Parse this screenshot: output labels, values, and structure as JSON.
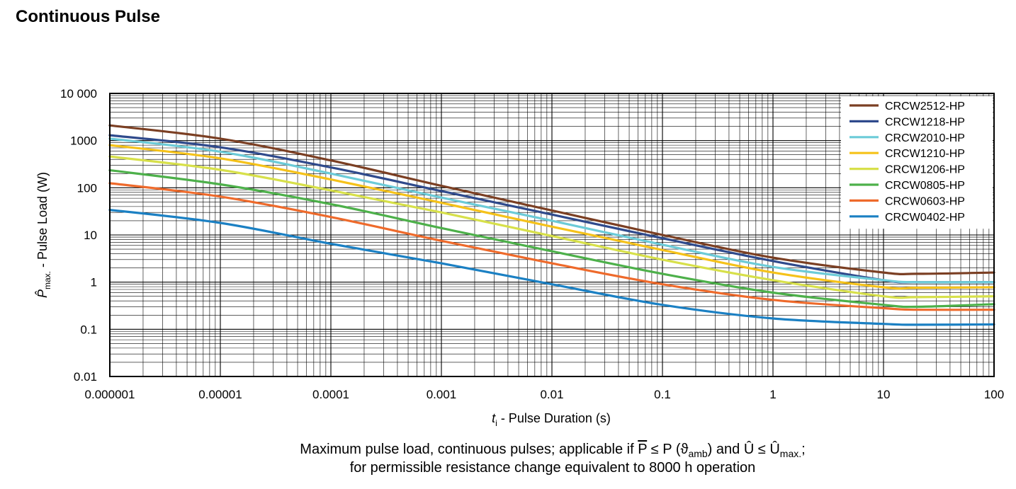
{
  "title": "Continuous Pulse",
  "caption": {
    "line1_prefix": "Maximum pulse load, continuous pulses; applicable if ",
    "pbar": "P",
    "leq": " ≤ P (",
    "theta": "ϑ",
    "amb": "amb",
    "and": ") and Û ≤ Û",
    "max": "max.",
    "end": ";",
    "line2": "for permissible resistance change equivalent to 8000 h operation"
  },
  "chart_data": {
    "type": "line",
    "xscale": "log",
    "yscale": "log",
    "xlim": [
      1e-06,
      100
    ],
    "ylim": [
      0.01,
      10000
    ],
    "xlabel_var": "t",
    "xlabel_sub": "i",
    "xlabel_text": " - Pulse Duration (s)",
    "ylabel_var": "P̂",
    "ylabel_sub": "max.",
    "ylabel_text": " - Pulse Load (W)",
    "xticks": [
      {
        "v": 1e-06,
        "label": "0.000001"
      },
      {
        "v": 1e-05,
        "label": "0.00001"
      },
      {
        "v": 0.0001,
        "label": "0.0001"
      },
      {
        "v": 0.001,
        "label": "0.001"
      },
      {
        "v": 0.01,
        "label": "0.01"
      },
      {
        "v": 0.1,
        "label": "0.1"
      },
      {
        "v": 1,
        "label": "1"
      },
      {
        "v": 10,
        "label": "10"
      },
      {
        "v": 100,
        "label": "100"
      }
    ],
    "yticks": [
      {
        "v": 10000,
        "label": "10 000"
      },
      {
        "v": 1000,
        "label": "1000"
      },
      {
        "v": 100,
        "label": "100"
      },
      {
        "v": 10,
        "label": "10"
      },
      {
        "v": 1,
        "label": "1"
      },
      {
        "v": 0.1,
        "label": "0.1"
      },
      {
        "v": 0.01,
        "label": "0.01"
      }
    ],
    "grid": true,
    "legend_position": "top-right",
    "x": [
      1e-06,
      1e-05,
      0.0001,
      0.001,
      0.01,
      0.1,
      1,
      10,
      20,
      100
    ],
    "series": [
      {
        "name": "CRCW2512-HP",
        "color": "#7b3f23",
        "values": [
          2100,
          1100,
          380,
          110,
          33,
          10,
          3.3,
          1.6,
          1.5,
          1.6
        ]
      },
      {
        "name": "CRCW1218-HP",
        "color": "#2f4a8c",
        "values": [
          1300,
          720,
          270,
          85,
          27,
          8.5,
          2.8,
          1.1,
          1.0,
          1.0
        ]
      },
      {
        "name": "CRCW2010-HP",
        "color": "#6ccbd8",
        "values": [
          1100,
          580,
          200,
          62,
          20,
          6.2,
          2.1,
          1.1,
          1.0,
          1.0
        ]
      },
      {
        "name": "CRCW1210-HP",
        "color": "#f5c21a",
        "values": [
          800,
          420,
          150,
          48,
          15,
          4.8,
          1.6,
          0.78,
          0.76,
          0.78
        ]
      },
      {
        "name": "CRCW1206-HP",
        "color": "#d7e04a",
        "values": [
          460,
          240,
          88,
          30,
          9.5,
          3.0,
          1.1,
          0.5,
          0.48,
          0.5
        ]
      },
      {
        "name": "CRCW0805-HP",
        "color": "#4db04a",
        "values": [
          235,
          118,
          45,
          14,
          4.5,
          1.5,
          0.6,
          0.33,
          0.3,
          0.34
        ]
      },
      {
        "name": "CRCW0603-HP",
        "color": "#ee6a2b",
        "values": [
          125,
          65,
          24,
          7.5,
          2.5,
          0.9,
          0.42,
          0.28,
          0.26,
          0.26
        ]
      },
      {
        "name": "CRCW0402-HP",
        "color": "#1b80c3",
        "values": [
          34,
          18,
          6.5,
          2.5,
          0.9,
          0.33,
          0.17,
          0.13,
          0.125,
          0.127
        ]
      }
    ]
  }
}
